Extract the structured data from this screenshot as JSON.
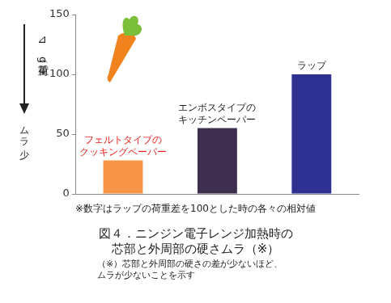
{
  "chart_data": {
    "type": "bar",
    "categories": [
      [
        "フェルトタイプの",
        "クッキングペーパー"
      ],
      [
        "エンボスタイプの",
        "キッチンペーパー"
      ],
      "ラップ"
    ],
    "values": [
      28,
      55,
      100
    ],
    "colors": [
      "#f79646",
      "#3d2f4d",
      "#2e3192"
    ],
    "ylim": [
      0,
      150
    ],
    "yticks": [
      0,
      50,
      100,
      150
    ],
    "grid": false,
    "tick_labels": "y",
    "y_label": "荷重（g）",
    "annotations": [
      "⊿",
      "ムラ少"
    ],
    "note": "※数字はラップの荷重差を100とした時の各々の相対値",
    "caption": [
      "図４．ニンジン電子レンジ加熱時の",
      "芯部と外周部の硬さムラ（※）"
    ],
    "footnote": [
      "（※）芯部と外周部の硬さの差が少ないほど、",
      "ムラが少ないことを示す"
    ]
  }
}
